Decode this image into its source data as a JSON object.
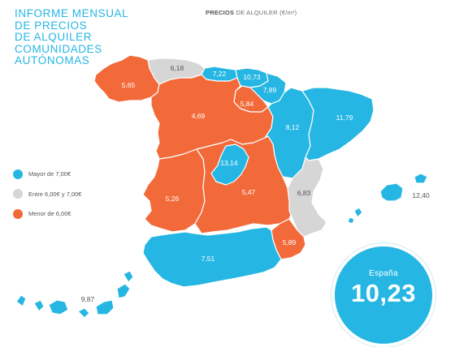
{
  "header": {
    "title_lines": [
      "INFORME MENSUAL",
      "DE PRECIOS",
      "DE ALQUILER",
      "COMUNIDADES",
      "AUTÓNOMAS"
    ],
    "subtitle_bold": "PRECIOS",
    "subtitle_rest": " DE ALQUILER (€/m²)"
  },
  "colors": {
    "above_7": "#25b6e3",
    "between_6_7": "#d6d6d6",
    "below_6": "#f26a3a",
    "background": "#ffffff"
  },
  "legend": {
    "items": [
      {
        "label": "Mayor de 7,00€",
        "category": "above_7"
      },
      {
        "label": "Entre 6,00€ y 7,00€",
        "category": "between_6_7"
      },
      {
        "label": "Menor de 6,00€",
        "category": "below_6"
      }
    ]
  },
  "regions": {
    "galicia": {
      "value": "5,65",
      "category": "below_6"
    },
    "asturias": {
      "value": "6,18",
      "category": "between_6_7"
    },
    "cantabria": {
      "value": "7,22",
      "category": "above_7"
    },
    "pais_vasco": {
      "value": "10,73",
      "category": "above_7"
    },
    "navarra": {
      "value": "7,89",
      "category": "above_7"
    },
    "la_rioja": {
      "value": "5,84",
      "category": "below_6"
    },
    "aragon": {
      "value": "8,12",
      "category": "above_7"
    },
    "cataluna": {
      "value": "11,79",
      "category": "above_7"
    },
    "castilla_leon": {
      "value": "4,69",
      "category": "below_6"
    },
    "madrid": {
      "value": "13,14",
      "category": "above_7"
    },
    "extremadura": {
      "value": "5,26",
      "category": "below_6"
    },
    "castilla_la_mancha": {
      "value": "5,47",
      "category": "below_6"
    },
    "valencia": {
      "value": "6,83",
      "category": "between_6_7"
    },
    "murcia": {
      "value": "5,89",
      "category": "below_6"
    },
    "andalucia": {
      "value": "7,51",
      "category": "above_7"
    },
    "baleares": {
      "value": "12,40",
      "category": "above_7"
    },
    "canarias": {
      "value": "9,87",
      "category": "above_7"
    }
  },
  "spain_total": {
    "label": "España",
    "value": "10,23"
  }
}
